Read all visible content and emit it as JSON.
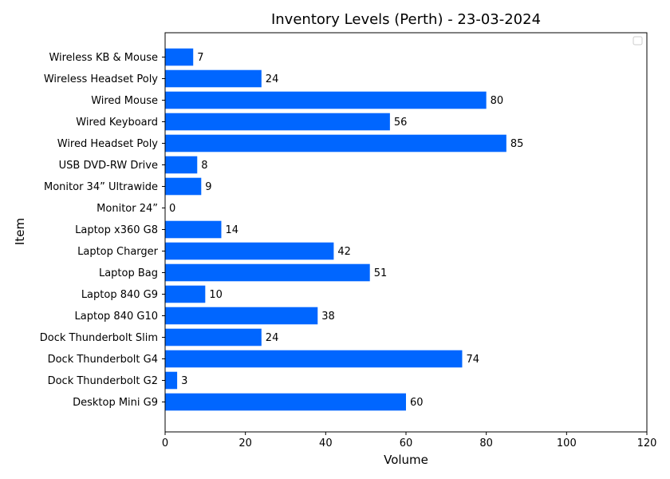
{
  "chart_data": {
    "type": "bar",
    "orientation": "horizontal",
    "title": "Inventory Levels (Perth) - 23-03-2024",
    "xlabel": "Volume",
    "ylabel": "Item",
    "xlim": [
      0,
      120
    ],
    "xticks": [
      0,
      20,
      40,
      60,
      80,
      100,
      120
    ],
    "categories": [
      "Desktop Mini G9",
      "Dock Thunderbolt G2",
      "Dock Thunderbolt G4",
      "Dock Thunderbolt Slim",
      "Laptop 840 G10",
      "Laptop 840 G9",
      "Laptop Bag",
      "Laptop Charger ",
      "Laptop x360 G8",
      "Monitor 24”",
      "Monitor 34” Ultrawide",
      "USB DVD-RW Drive",
      "Wired Headset Poly",
      "Wired Keyboard",
      "Wired Mouse",
      "Wireless Headset Poly ",
      "Wireless KB & Mouse"
    ],
    "values": [
      60,
      3,
      74,
      24,
      38,
      10,
      51,
      42,
      14,
      0,
      9,
      8,
      85,
      56,
      80,
      24,
      7
    ],
    "bar_color": "#0066ff",
    "grid": false,
    "legend": "top-right"
  }
}
